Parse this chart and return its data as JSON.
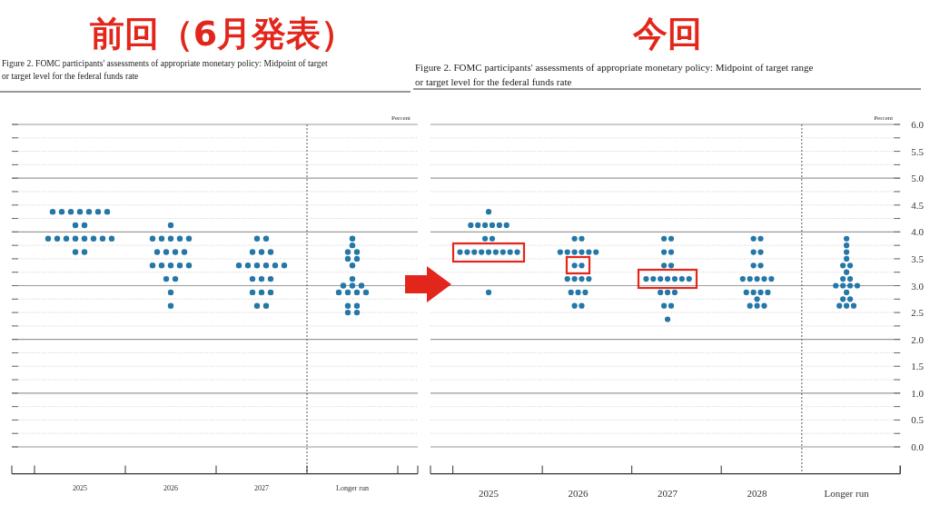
{
  "chart_data": [
    {
      "type": "scatter",
      "title": "前回（6月発表）",
      "subtitle": "Figure 2.  FOMC participants' assessments of appropriate monetary policy:  Midpoint of target\nor target level for the federal funds rate",
      "ylabel": "Percent",
      "series": [
        {
          "color": "#2477a6",
          "x": [
            2024.7,
            2024.8,
            2024.9,
            2025,
            2025.1,
            2025.2,
            2025.3,
            2024.95,
            2025.05,
            2024.65,
            2024.75,
            2024.85,
            2024.95,
            2025.05,
            2025.15,
            2025.25,
            2025.35,
            2024.95,
            2025.05
          ],
          "values": [
            4.375,
            4.375,
            4.375,
            4.375,
            4.375,
            4.375,
            4.375,
            4.125,
            4.125,
            3.875,
            3.875,
            3.875,
            3.875,
            3.875,
            3.875,
            3.875,
            3.875,
            3.625,
            3.625
          ]
        },
        {
          "color": "#2477a6",
          "x": [
            2026,
            2025.8,
            2025.9,
            2026,
            2026.1,
            2026.2,
            2025.85,
            2025.95,
            2026.05,
            2026.15,
            2025.8,
            2025.9,
            2026,
            2026.1,
            2026.2,
            2025.95,
            2026.05,
            2026,
            2026
          ],
          "values": [
            4.125,
            3.875,
            3.875,
            3.875,
            3.875,
            3.875,
            3.625,
            3.625,
            3.625,
            3.625,
            3.375,
            3.375,
            3.375,
            3.375,
            3.375,
            3.125,
            3.125,
            2.875,
            2.625
          ]
        },
        {
          "color": "#2477a6",
          "x": [
            2026.95,
            2027.05,
            2026.9,
            2027,
            2027.1,
            2026.75,
            2026.85,
            2026.95,
            2027.05,
            2027.15,
            2027.25,
            2026.9,
            2027,
            2027.1,
            2026.9,
            2027,
            2027.1,
            2026.95,
            2027.05
          ],
          "values": [
            3.875,
            3.875,
            3.625,
            3.625,
            3.625,
            3.375,
            3.375,
            3.375,
            3.375,
            3.375,
            3.375,
            3.125,
            3.125,
            3.125,
            2.875,
            2.875,
            2.875,
            2.625,
            2.625
          ]
        },
        {
          "color": "#2477a6",
          "x": [
            2028,
            2028,
            2027.95,
            2028.05,
            2027.95,
            2028.05,
            2028,
            2028,
            2027.9,
            2028,
            2028.1,
            2027.85,
            2027.95,
            2028.05,
            2028.15,
            2027.95,
            2028.05,
            2027.95,
            2028.05
          ],
          "values": [
            3.875,
            3.75,
            3.625,
            3.625,
            3.5,
            3.5,
            3.375,
            3.125,
            3.0,
            3.0,
            3.0,
            2.875,
            2.875,
            2.875,
            2.875,
            2.625,
            2.625,
            2.5,
            2.5
          ]
        }
      ],
      "xlim": [
        2024.25,
        2028.72
      ],
      "xticks": [
        {
          "value": 2024.5,
          "label": null
        },
        2025,
        {
          "value": 2025.5,
          "label": null
        },
        2026,
        {
          "value": 2026.5,
          "label": null
        },
        2027,
        {
          "value": 2027.5,
          "label": null
        },
        {
          "value": 2028,
          "label": "Longer run"
        },
        {
          "value": 2028.5,
          "label": null
        }
      ],
      "ylim": [
        -0.5,
        6
      ],
      "yticks": [
        {
          "value": 0,
          "label": null
        },
        {
          "value": 0.25,
          "label": null
        },
        {
          "value": 0.5,
          "label": null
        },
        {
          "value": 0.75,
          "label": null
        },
        {
          "value": 1,
          "label": null
        },
        {
          "value": 1.25,
          "label": null
        },
        {
          "value": 1.5,
          "label": null
        },
        {
          "value": 1.75,
          "label": null
        },
        {
          "value": 2,
          "label": null
        },
        {
          "value": 2.25,
          "label": null
        },
        {
          "value": 2.5,
          "label": null
        },
        {
          "value": 2.75,
          "label": null
        },
        {
          "value": 3,
          "label": null
        },
        {
          "value": 3.25,
          "label": null
        },
        {
          "value": 3.5,
          "label": null
        },
        {
          "value": 3.75,
          "label": null
        },
        {
          "value": 4,
          "label": null
        },
        {
          "value": 4.25,
          "label": null
        },
        {
          "value": 4.5,
          "label": null
        },
        {
          "value": 4.75,
          "label": null
        },
        {
          "value": 5,
          "label": null
        },
        {
          "value": 5.25,
          "label": null
        },
        {
          "value": 5.5,
          "label": null
        },
        {
          "value": 5.75,
          "label": null
        },
        {
          "value": 6,
          "label": null
        }
      ],
      "tick_labels": "x",
      "grid": "y",
      "marker": "circle",
      "ref_lines": [
        {
          "axis": "x",
          "value": 2027.5,
          "line_style": "dotted",
          "color": "#555555"
        }
      ]
    },
    {
      "type": "scatter",
      "title": "今回",
      "subtitle": "Figure 2. FOMC participants' assessments of appropriate monetary policy: Midpoint of target range\nor target level for the federal funds rate",
      "ylabel": "Percent",
      "series": [
        {
          "color": "#2477a6",
          "x": [
            2025,
            2024.8,
            2024.88,
            2024.96,
            2025.04,
            2025.12,
            2025.2,
            2024.96,
            2025.04,
            2024.68,
            2024.76,
            2024.84,
            2024.92,
            2025,
            2025.08,
            2025.16,
            2025.24,
            2025.32,
            2025
          ],
          "values": [
            4.375,
            4.125,
            4.125,
            4.125,
            4.125,
            4.125,
            4.125,
            3.875,
            3.875,
            3.625,
            3.625,
            3.625,
            3.625,
            3.625,
            3.625,
            3.625,
            3.625,
            3.625,
            2.875
          ]
        },
        {
          "color": "#2477a6",
          "x": [
            2025.96,
            2026.04,
            2025.8,
            2025.88,
            2025.96,
            2026.04,
            2026.12,
            2026.2,
            2025.96,
            2026.04,
            2025.88,
            2025.96,
            2026.04,
            2026.12,
            2025.92,
            2026,
            2026.08,
            2025.96,
            2026.04
          ],
          "values": [
            3.875,
            3.875,
            3.625,
            3.625,
            3.625,
            3.625,
            3.625,
            3.625,
            3.375,
            3.375,
            3.125,
            3.125,
            3.125,
            3.125,
            2.875,
            2.875,
            2.875,
            2.625,
            2.625
          ]
        },
        {
          "color": "#2477a6",
          "x": [
            2026.96,
            2027.04,
            2026.96,
            2027.04,
            2026.96,
            2027.04,
            2026.76,
            2026.84,
            2026.92,
            2027,
            2027.08,
            2027.16,
            2027.24,
            2026.92,
            2027,
            2027.08,
            2026.96,
            2027.04,
            2027
          ],
          "values": [
            3.875,
            3.875,
            3.625,
            3.625,
            3.375,
            3.375,
            3.125,
            3.125,
            3.125,
            3.125,
            3.125,
            3.125,
            3.125,
            2.875,
            2.875,
            2.875,
            2.625,
            2.625,
            2.375
          ]
        },
        {
          "color": "#2477a6",
          "x": [
            2027.96,
            2028.04,
            2027.96,
            2028.04,
            2027.96,
            2028.04,
            2027.84,
            2027.92,
            2028,
            2028.08,
            2028.16,
            2027.88,
            2027.96,
            2028.04,
            2028.12,
            2028,
            2027.92,
            2028,
            2028.08
          ],
          "values": [
            3.875,
            3.875,
            3.625,
            3.625,
            3.375,
            3.375,
            3.125,
            3.125,
            3.125,
            3.125,
            3.125,
            2.875,
            2.875,
            2.875,
            2.875,
            2.75,
            2.625,
            2.625,
            2.625
          ]
        },
        {
          "color": "#2477a6",
          "x": [
            2029,
            2029,
            2029,
            2029,
            2028.96,
            2029.04,
            2029,
            2028.96,
            2029.04,
            2028.88,
            2028.96,
            2029.04,
            2029.12,
            2029,
            2028.96,
            2029.04,
            2028.92,
            2029,
            2029.08
          ],
          "values": [
            3.875,
            3.75,
            3.625,
            3.5,
            3.375,
            3.375,
            3.25,
            3.125,
            3.125,
            3.0,
            3.0,
            3.0,
            3.0,
            2.875,
            2.75,
            2.75,
            2.625,
            2.625,
            2.625
          ]
        }
      ],
      "xlim": [
        2024.35,
        2029.6
      ],
      "xticks": [
        {
          "value": 2024.6,
          "label": null
        },
        2025,
        {
          "value": 2025.6,
          "label": null
        },
        2026,
        {
          "value": 2026.6,
          "label": null
        },
        2027,
        {
          "value": 2027.6,
          "label": null
        },
        2028,
        {
          "value": 2029,
          "label": "Longer run"
        },
        {
          "value": 2029.6,
          "label": null
        }
      ],
      "ylim": [
        -0.5,
        6
      ],
      "yticks": [
        {
          "value": 0,
          "label": "0.0"
        },
        {
          "value": 0.25,
          "label": null
        },
        {
          "value": 0.5,
          "label": "0.5"
        },
        {
          "value": 0.75,
          "label": null
        },
        {
          "value": 1,
          "label": "1.0"
        },
        {
          "value": 1.25,
          "label": null
        },
        {
          "value": 1.5,
          "label": "1.5"
        },
        {
          "value": 1.75,
          "label": null
        },
        {
          "value": 2,
          "label": "2.0"
        },
        {
          "value": 2.25,
          "label": null
        },
        {
          "value": 2.5,
          "label": "2.5"
        },
        {
          "value": 2.75,
          "label": null
        },
        {
          "value": 3,
          "label": "3.0"
        },
        {
          "value": 3.25,
          "label": null
        },
        {
          "value": 3.5,
          "label": "3.5"
        },
        {
          "value": 3.75,
          "label": null
        },
        {
          "value": 4,
          "label": "4.0"
        },
        {
          "value": 4.25,
          "label": null
        },
        {
          "value": 4.5,
          "label": "4.5"
        },
        {
          "value": 4.75,
          "label": null
        },
        {
          "value": 5,
          "label": "5.0"
        },
        {
          "value": 5.25,
          "label": null
        },
        {
          "value": 5.5,
          "label": "5.5"
        },
        {
          "value": 5.75,
          "label": null
        },
        {
          "value": 6,
          "label": "6.0"
        }
      ],
      "grid": "y",
      "marker": "circle",
      "ref_lines": [
        {
          "axis": "x",
          "value": 2028.5,
          "line_style": "dotted",
          "color": "#555555"
        }
      ]
    }
  ]
}
